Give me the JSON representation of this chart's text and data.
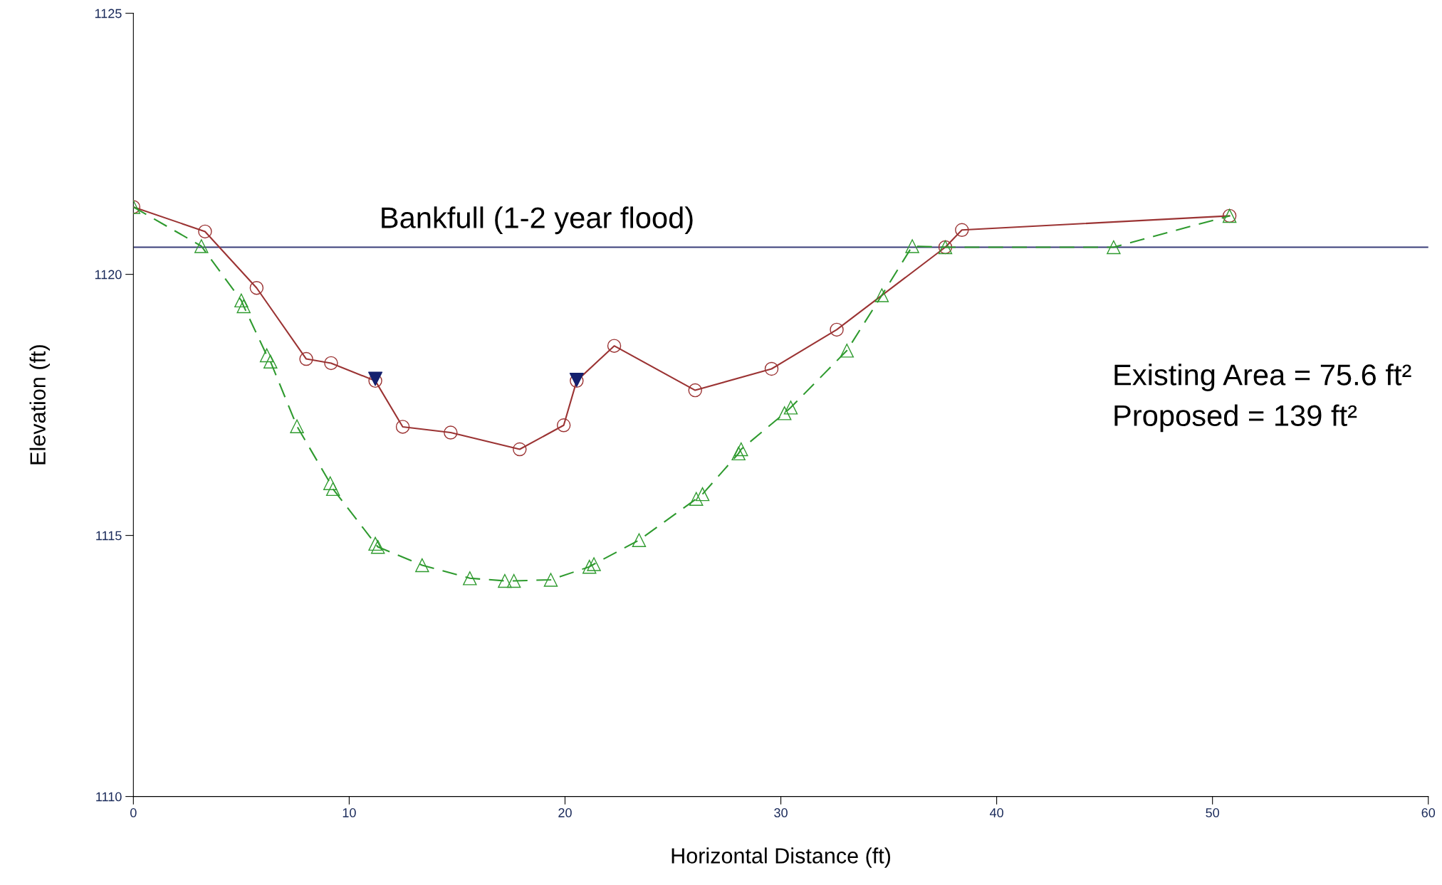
{
  "chart_data": {
    "type": "line",
    "xlabel": "Horizontal Distance (ft)",
    "ylabel": "Elevation (ft)",
    "xlim": [
      0,
      60
    ],
    "ylim": [
      1110,
      1125
    ],
    "xticks": [
      0,
      10,
      20,
      30,
      40,
      50,
      60
    ],
    "yticks": [
      1110,
      1115,
      1120,
      1125
    ],
    "grid": false,
    "legend": false,
    "series": [
      {
        "color": "#9b3333",
        "marker": "circle",
        "line_style": "solid",
        "x": [
          0,
          3.32,
          5.71,
          8.01,
          9.16,
          11.21,
          12.48,
          14.7,
          17.9,
          19.94,
          20.54,
          22.28,
          26.03,
          29.57,
          32.59,
          37.62,
          38.39,
          50.79
        ],
        "values": [
          1121.29,
          1120.82,
          1119.74,
          1118.38,
          1118.3,
          1117.96,
          1117.08,
          1116.97,
          1116.65,
          1117.11,
          1117.96,
          1118.63,
          1117.78,
          1118.19,
          1118.94,
          1120.52,
          1120.85,
          1121.12
        ]
      },
      {
        "color": "#2e9a2e",
        "marker": "triangle",
        "line_style": "dashed",
        "x": [
          0,
          3.15,
          5.0,
          5.11,
          6.18,
          6.35,
          7.58,
          9.12,
          9.25,
          11.21,
          11.33,
          13.38,
          15.59,
          17.21,
          17.63,
          19.34,
          21.13,
          21.34,
          23.43,
          26.08,
          26.37,
          28.04,
          28.16,
          30.17,
          30.46,
          33.06,
          34.68,
          36.09,
          37.62,
          45.42,
          50.79
        ],
        "values": [
          1121.29,
          1120.54,
          1119.5,
          1119.39,
          1118.45,
          1118.33,
          1117.09,
          1116.0,
          1115.89,
          1114.84,
          1114.78,
          1114.43,
          1114.18,
          1114.13,
          1114.13,
          1114.15,
          1114.4,
          1114.45,
          1114.91,
          1115.7,
          1115.79,
          1116.57,
          1116.65,
          1117.34,
          1117.45,
          1118.54,
          1119.6,
          1120.54,
          1120.52,
          1120.52,
          1121.12
        ]
      },
      {
        "type": "scatter",
        "color": "#14206e",
        "marker": "triangle_down",
        "x": [
          11.21,
          20.54
        ],
        "values": [
          1118.0,
          1117.98
        ]
      }
    ],
    "ref_lines": [
      {
        "axis": "y",
        "value": 1120.52,
        "label": "Bankfull (1-2 year flood)",
        "color": "#3a3f7a",
        "line_style": "solid"
      }
    ],
    "annotations": [
      "Existing Area = 75.6 ft²",
      "Proposed = 139 ft²"
    ]
  }
}
